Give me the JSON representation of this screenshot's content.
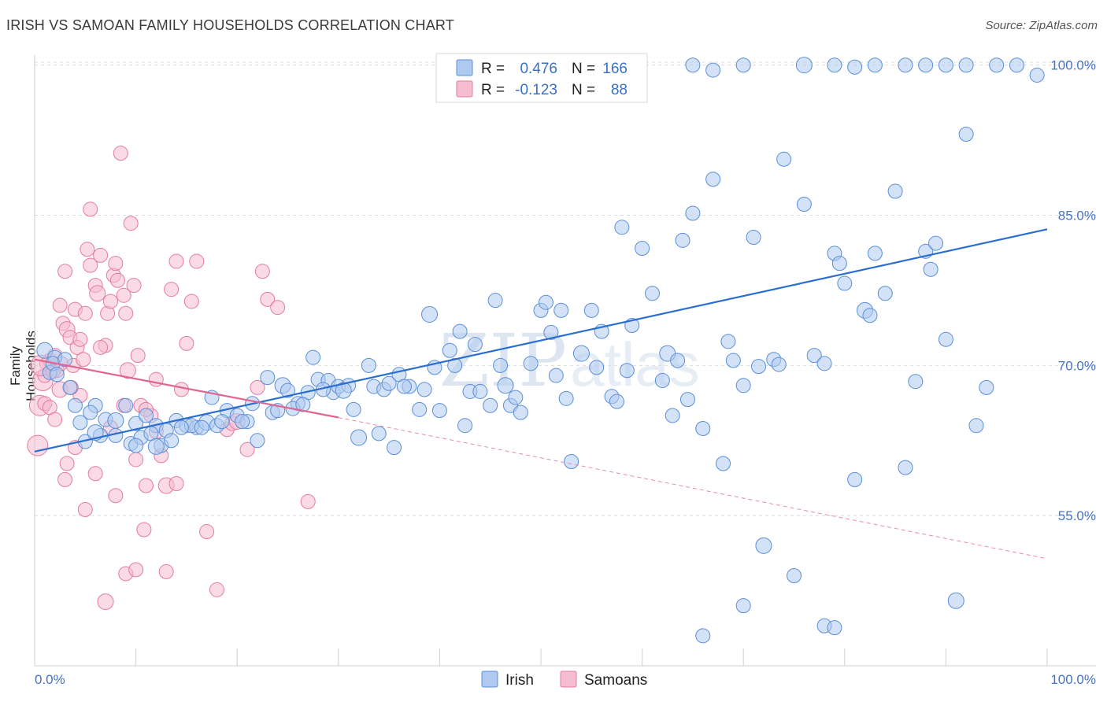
{
  "title": "IRISH VS SAMOAN FAMILY HOUSEHOLDS CORRELATION CHART",
  "source": "Source: ZipAtlas.com",
  "watermark": "ZIPatlas",
  "chart_data": {
    "type": "scatter",
    "title": "IRISH VS SAMOAN FAMILY HOUSEHOLDS CORRELATION CHART",
    "xlabel": "",
    "ylabel": "Family Households",
    "xlim": [
      0,
      100
    ],
    "ylim": [
      40,
      101
    ],
    "x_tick_labels": [
      "0.0%",
      "100.0%"
    ],
    "y_ticks": [
      55,
      70,
      85,
      100
    ],
    "y_tick_labels": [
      "55.0%",
      "70.0%",
      "85.0%",
      "100.0%"
    ],
    "legend_position": "bottom-center",
    "stats": [
      {
        "r_label": "R =",
        "r": "0.476",
        "n_label": "N =",
        "n": "166"
      },
      {
        "r_label": "R =",
        "r": "-0.123",
        "n_label": "N =",
        "n": "88"
      }
    ],
    "series": [
      {
        "name": "Irish",
        "color": "#5b8fd6",
        "fill": "#aecaf0",
        "trend": {
          "x0": 0,
          "y0": 61.4,
          "x1": 100,
          "y1": 83.6,
          "style": "solid"
        },
        "points": [
          [
            1,
            71.5
          ],
          [
            2,
            70.8
          ],
          [
            1.5,
            69.3
          ],
          [
            3.5,
            67.8
          ],
          [
            4,
            66
          ],
          [
            4.5,
            64.3
          ],
          [
            5,
            62.4
          ],
          [
            6,
            66
          ],
          [
            5.5,
            65.3
          ],
          [
            7,
            64.6
          ],
          [
            6.5,
            63
          ],
          [
            8,
            64.5
          ],
          [
            9,
            66
          ],
          [
            10,
            64.2
          ],
          [
            9.5,
            62.2
          ],
          [
            11,
            65
          ],
          [
            12,
            64
          ],
          [
            12.5,
            62
          ],
          [
            13,
            63.5
          ],
          [
            14,
            64.5
          ],
          [
            15,
            64
          ],
          [
            16,
            63.8
          ],
          [
            17,
            64.3
          ],
          [
            18,
            64
          ],
          [
            17.5,
            66.8
          ],
          [
            19,
            65.5
          ],
          [
            20,
            65
          ],
          [
            21,
            64.4
          ],
          [
            21.5,
            66.2
          ],
          [
            22,
            62.5
          ],
          [
            23,
            68.8
          ],
          [
            23.5,
            65.3
          ],
          [
            24,
            65.5
          ],
          [
            24.5,
            68
          ],
          [
            25,
            67.5
          ],
          [
            26,
            66.2
          ],
          [
            27,
            67.3
          ],
          [
            27.5,
            70.8
          ],
          [
            28,
            68.6
          ],
          [
            29,
            68.5
          ],
          [
            29.5,
            67.3
          ],
          [
            30,
            67.9
          ],
          [
            31,
            68
          ],
          [
            31.5,
            65.6
          ],
          [
            32,
            62.8
          ],
          [
            33,
            70
          ],
          [
            33.5,
            67.9
          ],
          [
            34,
            63.2
          ],
          [
            34.5,
            67.6
          ],
          [
            35,
            68.2
          ],
          [
            35.5,
            61.8
          ],
          [
            36,
            69.1
          ],
          [
            37,
            67.9
          ],
          [
            38,
            65.6
          ],
          [
            38.5,
            67.6
          ],
          [
            39,
            75.1
          ],
          [
            40,
            65.5
          ],
          [
            41,
            71.5
          ],
          [
            41.5,
            70
          ],
          [
            42,
            73.4
          ],
          [
            42.5,
            64
          ],
          [
            43,
            67.4
          ],
          [
            44,
            67.4
          ],
          [
            45,
            66
          ],
          [
            45.5,
            76.5
          ],
          [
            46,
            70
          ],
          [
            46.5,
            68
          ],
          [
            47,
            66
          ],
          [
            47.5,
            66.8
          ],
          [
            48,
            65.3
          ],
          [
            49,
            70.2
          ],
          [
            50,
            75.5
          ],
          [
            50.5,
            76.3
          ],
          [
            51,
            73.3
          ],
          [
            51.5,
            69
          ],
          [
            52,
            75.5
          ],
          [
            53,
            60.4
          ],
          [
            54,
            71.2
          ],
          [
            55,
            75.5
          ],
          [
            55.5,
            69.8
          ],
          [
            56,
            73.4
          ],
          [
            57,
            66.9
          ],
          [
            58,
            83.8
          ],
          [
            58.5,
            69.5
          ],
          [
            59,
            74
          ],
          [
            60,
            81.7
          ],
          [
            61,
            77.2
          ],
          [
            62,
            68.5
          ],
          [
            62.5,
            71.2
          ],
          [
            63,
            65
          ],
          [
            64,
            82.5
          ],
          [
            64.5,
            66.6
          ],
          [
            65,
            85.2
          ],
          [
            66,
            63.7
          ],
          [
            67,
            88.6
          ],
          [
            68,
            60.2
          ],
          [
            69,
            70.5
          ],
          [
            70,
            68
          ],
          [
            71,
            82.8
          ],
          [
            72,
            52
          ],
          [
            73,
            70.6
          ],
          [
            74,
            90.6
          ],
          [
            75,
            49
          ],
          [
            76,
            86.1
          ],
          [
            77,
            71
          ],
          [
            78,
            70.2
          ],
          [
            79,
            81.2
          ],
          [
            79.5,
            80.2
          ],
          [
            80,
            78.2
          ],
          [
            81,
            58.6
          ],
          [
            82,
            75.5
          ],
          [
            82.5,
            75
          ],
          [
            83,
            81.2
          ],
          [
            84,
            77.2
          ],
          [
            85,
            87.4
          ],
          [
            86,
            59.8
          ],
          [
            87,
            68.4
          ],
          [
            88,
            81.4
          ],
          [
            88.5,
            79.6
          ],
          [
            89,
            82.2
          ],
          [
            90,
            72.6
          ],
          [
            91,
            46.5
          ],
          [
            92,
            93.1
          ],
          [
            93,
            64
          ],
          [
            94,
            67.8
          ],
          [
            70,
            46
          ],
          [
            66,
            43
          ],
          [
            78,
            44
          ],
          [
            79,
            43.8
          ],
          [
            65,
            100
          ],
          [
            67,
            99.5
          ],
          [
            70,
            100
          ],
          [
            76,
            100
          ],
          [
            79,
            100
          ],
          [
            81,
            99.8
          ],
          [
            83,
            100
          ],
          [
            86,
            100
          ],
          [
            88,
            100
          ],
          [
            90,
            100
          ],
          [
            92,
            100
          ],
          [
            95,
            100
          ],
          [
            97,
            100
          ],
          [
            99,
            99
          ],
          [
            6,
            63.3
          ],
          [
            8,
            63
          ],
          [
            10.5,
            62.8
          ],
          [
            11.5,
            63.2
          ],
          [
            13.5,
            62.5
          ],
          [
            15.5,
            64
          ],
          [
            18.5,
            64.4
          ],
          [
            20.5,
            64.4
          ],
          [
            25.5,
            65.7
          ],
          [
            26.5,
            66.1
          ],
          [
            28.5,
            67.6
          ],
          [
            30.5,
            67.5
          ],
          [
            36.5,
            67.9
          ],
          [
            39.5,
            69.8
          ],
          [
            43.5,
            72.1
          ],
          [
            52.5,
            66.7
          ],
          [
            57.5,
            66.4
          ],
          [
            63.5,
            70.5
          ],
          [
            68.5,
            72.4
          ],
          [
            71.5,
            69.9
          ],
          [
            73.5,
            70.1
          ],
          [
            10,
            62
          ],
          [
            12,
            61.9
          ],
          [
            14.5,
            63.8
          ],
          [
            16.5,
            63.8
          ],
          [
            1.8,
            70.2
          ],
          [
            2.2,
            69.1
          ],
          [
            3,
            70.6
          ]
        ]
      },
      {
        "name": "Samoans",
        "color": "#e37ca1",
        "fill": "#f6bcd0",
        "trend": {
          "x0": 0,
          "y0": 70.6,
          "x1": 30,
          "y1": 64.8,
          "x2": 100,
          "y2": 50.7,
          "style": "solid-then-dashed"
        },
        "points": [
          [
            0.3,
            62
          ],
          [
            0.5,
            66
          ],
          [
            0.8,
            68.5
          ],
          [
            1,
            69
          ],
          [
            1.2,
            70.2
          ],
          [
            1.5,
            70.5
          ],
          [
            2,
            71
          ],
          [
            2.2,
            69.5
          ],
          [
            2.5,
            76
          ],
          [
            2.8,
            74.2
          ],
          [
            3,
            79.4
          ],
          [
            3.2,
            73.6
          ],
          [
            3.5,
            72.8
          ],
          [
            3.8,
            70
          ],
          [
            4,
            75.6
          ],
          [
            4.2,
            71.8
          ],
          [
            4.5,
            67
          ],
          [
            4.8,
            70.6
          ],
          [
            5,
            75.2
          ],
          [
            5.2,
            81.6
          ],
          [
            5.5,
            80
          ],
          [
            6,
            78
          ],
          [
            6.2,
            77.2
          ],
          [
            6.5,
            81
          ],
          [
            7,
            72
          ],
          [
            7.2,
            75.2
          ],
          [
            7.5,
            76.4
          ],
          [
            7.8,
            79
          ],
          [
            8,
            80.2
          ],
          [
            8.2,
            78.5
          ],
          [
            8.5,
            91.2
          ],
          [
            8.8,
            77
          ],
          [
            9,
            75.2
          ],
          [
            9.2,
            69.5
          ],
          [
            9.5,
            84.2
          ],
          [
            9.8,
            78
          ],
          [
            10,
            60.6
          ],
          [
            10.2,
            71
          ],
          [
            10.5,
            66
          ],
          [
            10.8,
            53.6
          ],
          [
            11,
            58
          ],
          [
            11.5,
            65
          ],
          [
            12,
            68.6
          ],
          [
            12.5,
            61
          ],
          [
            13,
            58
          ],
          [
            13.5,
            77.6
          ],
          [
            14,
            80.4
          ],
          [
            14.5,
            67.6
          ],
          [
            15,
            72.2
          ],
          [
            15.5,
            76.4
          ],
          [
            16,
            80.4
          ],
          [
            17,
            53.4
          ],
          [
            18,
            47.6
          ],
          [
            19,
            63.6
          ],
          [
            19.5,
            64.2
          ],
          [
            20,
            64.4
          ],
          [
            21,
            61.6
          ],
          [
            22,
            67.8
          ],
          [
            22.5,
            79.4
          ],
          [
            23,
            76.6
          ],
          [
            24,
            75.8
          ],
          [
            27,
            56.4
          ],
          [
            3,
            58.6
          ],
          [
            4,
            61.8
          ],
          [
            5,
            55.6
          ],
          [
            6,
            59.2
          ],
          [
            7,
            46.4
          ],
          [
            8,
            57
          ],
          [
            9,
            49.2
          ],
          [
            10,
            49.6
          ],
          [
            11,
            65.6
          ],
          [
            12,
            63.4
          ],
          [
            13,
            49.4
          ],
          [
            14,
            58.2
          ],
          [
            1,
            66.2
          ],
          [
            1.5,
            65.8
          ],
          [
            2,
            64.6
          ],
          [
            2.5,
            67.6
          ],
          [
            3.2,
            60.2
          ],
          [
            4.5,
            72.6
          ],
          [
            5.5,
            85.6
          ],
          [
            6.5,
            71.8
          ],
          [
            7.5,
            63.8
          ],
          [
            8.8,
            66
          ],
          [
            0.6,
            70
          ],
          [
            1.8,
            69.4
          ],
          [
            2.6,
            70.2
          ],
          [
            3.6,
            67.8
          ]
        ]
      }
    ]
  }
}
